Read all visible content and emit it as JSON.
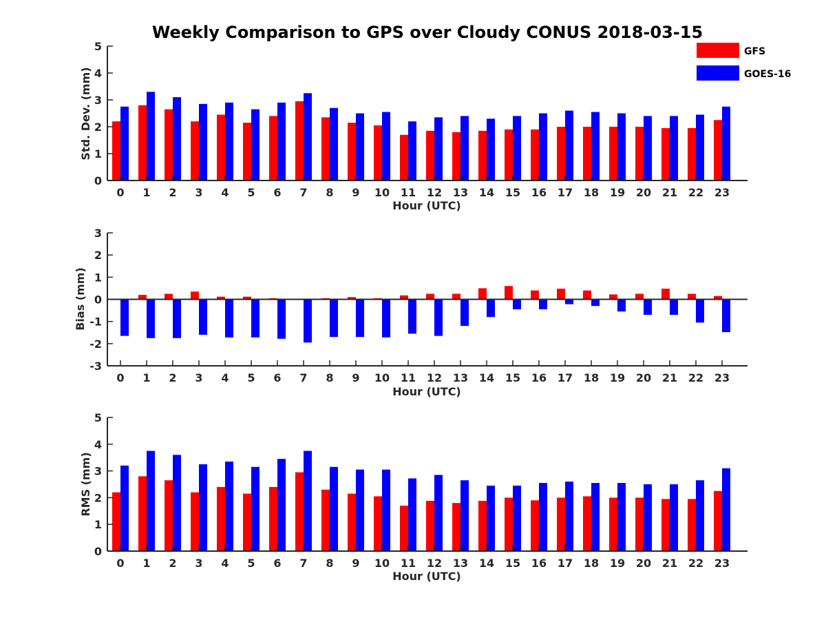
{
  "title": "Weekly Comparison to GPS over Cloudy CONUS 2018-03-15",
  "legend": [
    {
      "label": "GFS",
      "color": "#ff0000"
    },
    {
      "label": "GOES-16",
      "color": "#0000ff"
    }
  ],
  "chart_data": [
    {
      "type": "bar",
      "ylabel": "Std. Dev. (mm)",
      "xlabel": "Hour (UTC)",
      "ylim": [
        0,
        5
      ],
      "yticks": [
        0,
        1,
        2,
        3,
        4,
        5
      ],
      "categories": [
        "0",
        "1",
        "2",
        "3",
        "4",
        "5",
        "6",
        "7",
        "8",
        "9",
        "10",
        "11",
        "12",
        "13",
        "14",
        "15",
        "16",
        "17",
        "18",
        "19",
        "20",
        "21",
        "22",
        "23"
      ],
      "series": [
        {
          "name": "GFS",
          "color": "#ff0000",
          "values": [
            2.2,
            2.8,
            2.65,
            2.2,
            2.45,
            2.15,
            2.4,
            2.95,
            2.35,
            2.15,
            2.05,
            1.7,
            1.85,
            1.8,
            1.85,
            1.9,
            1.9,
            2.0,
            2.0,
            2.0,
            2.0,
            1.95,
            1.95,
            2.25
          ]
        },
        {
          "name": "GOES-16",
          "color": "#0000ff",
          "values": [
            2.75,
            3.3,
            3.1,
            2.85,
            2.9,
            2.65,
            2.9,
            3.25,
            2.7,
            2.5,
            2.55,
            2.2,
            2.35,
            2.4,
            2.3,
            2.4,
            2.5,
            2.6,
            2.55,
            2.5,
            2.4,
            2.4,
            2.45,
            2.75
          ]
        }
      ]
    },
    {
      "type": "bar",
      "ylabel": "Bias (mm)",
      "xlabel": "Hour (UTC)",
      "ylim": [
        -3,
        3
      ],
      "yticks": [
        -3,
        -2,
        -1,
        0,
        1,
        2,
        3
      ],
      "categories": [
        "0",
        "1",
        "2",
        "3",
        "4",
        "5",
        "6",
        "7",
        "8",
        "9",
        "10",
        "11",
        "12",
        "13",
        "14",
        "15",
        "16",
        "17",
        "18",
        "19",
        "20",
        "21",
        "22",
        "23"
      ],
      "series": [
        {
          "name": "GFS",
          "color": "#ff0000",
          "values": [
            0.0,
            0.2,
            0.25,
            0.35,
            0.12,
            0.12,
            0.05,
            -0.03,
            0.05,
            0.1,
            0.05,
            0.18,
            0.25,
            0.25,
            0.5,
            0.6,
            0.4,
            0.48,
            0.4,
            0.22,
            0.25,
            0.48,
            0.25,
            0.15
          ]
        },
        {
          "name": "GOES-16",
          "color": "#0000ff",
          "values": [
            -1.65,
            -1.75,
            -1.75,
            -1.6,
            -1.72,
            -1.72,
            -1.78,
            -1.95,
            -1.7,
            -1.7,
            -1.72,
            -1.55,
            -1.65,
            -1.2,
            -0.8,
            -0.45,
            -0.45,
            -0.22,
            -0.3,
            -0.55,
            -0.7,
            -0.7,
            -1.05,
            -1.48
          ]
        }
      ]
    },
    {
      "type": "bar",
      "ylabel": "RMS (mm)",
      "xlabel": "Hour (UTC)",
      "ylim": [
        0,
        5
      ],
      "yticks": [
        0,
        1,
        2,
        3,
        4,
        5
      ],
      "categories": [
        "0",
        "1",
        "2",
        "3",
        "4",
        "5",
        "6",
        "7",
        "8",
        "9",
        "10",
        "11",
        "12",
        "13",
        "14",
        "15",
        "16",
        "17",
        "18",
        "19",
        "20",
        "21",
        "22",
        "23"
      ],
      "series": [
        {
          "name": "GFS",
          "color": "#ff0000",
          "values": [
            2.2,
            2.8,
            2.65,
            2.2,
            2.4,
            2.15,
            2.4,
            2.95,
            2.3,
            2.15,
            2.05,
            1.7,
            1.88,
            1.8,
            1.88,
            2.0,
            1.9,
            2.0,
            2.05,
            2.0,
            2.0,
            1.95,
            1.95,
            2.25
          ]
        },
        {
          "name": "GOES-16",
          "color": "#0000ff",
          "values": [
            3.2,
            3.75,
            3.6,
            3.25,
            3.35,
            3.15,
            3.45,
            3.75,
            3.15,
            3.05,
            3.05,
            2.72,
            2.85,
            2.65,
            2.45,
            2.45,
            2.55,
            2.6,
            2.55,
            2.55,
            2.5,
            2.5,
            2.65,
            3.1
          ]
        }
      ]
    }
  ]
}
